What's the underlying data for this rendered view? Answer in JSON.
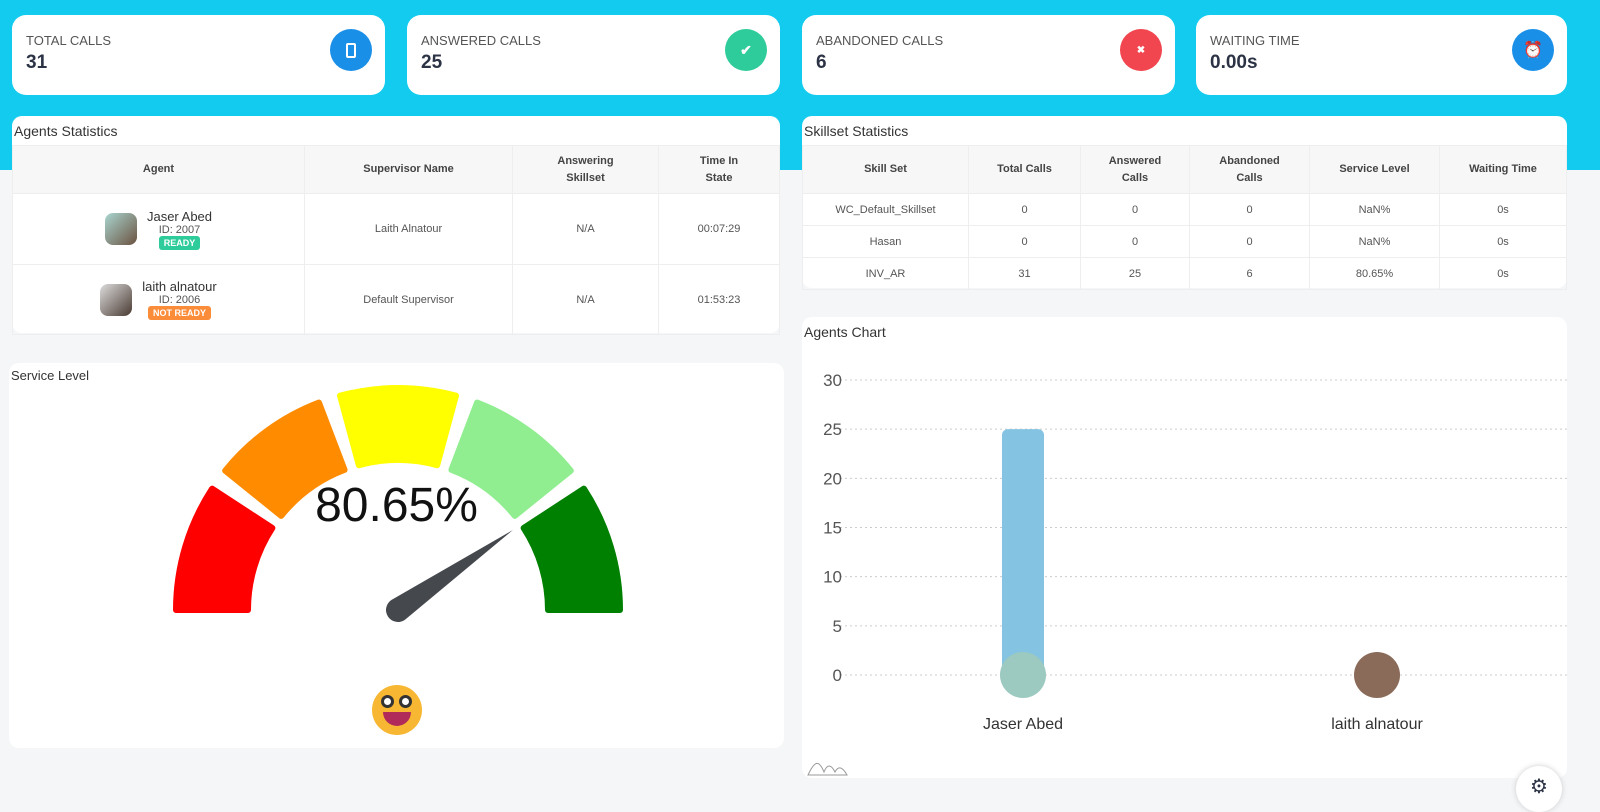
{
  "kpis": [
    {
      "label": "TOTAL CALLS",
      "value": "31",
      "icon": "mobile-phone-icon",
      "glyph": "▯",
      "color": "#1a8fe8"
    },
    {
      "label": "ANSWERED CALLS",
      "value": "25",
      "icon": "check-icon",
      "glyph": "✔",
      "color": "#2ecc9a"
    },
    {
      "label": "ABANDONED CALLS",
      "value": "6",
      "icon": "close-icon",
      "glyph": "✖",
      "color": "#f1454f"
    },
    {
      "label": "WAITING TIME",
      "value": "0.00s",
      "icon": "alarm-clock-icon",
      "glyph": "⏰",
      "color": "#1a8fe8"
    }
  ],
  "agents_stats": {
    "title": "Agents Statistics",
    "headers": [
      "Agent",
      "Supervisor Name",
      "Answering Skillset",
      "Time In State"
    ],
    "rows": [
      {
        "name": "Jaser Abed",
        "id": "ID: 2007",
        "status": "READY",
        "status_color": "#2ecc9a",
        "supervisor": "Laith Alnatour",
        "skillset": "N/A",
        "time": "00:07:29"
      },
      {
        "name": "laith alnatour",
        "id": "ID: 2006",
        "status": "NOT READY",
        "status_color": "#fb8c3a",
        "supervisor": "Default Supervisor",
        "skillset": "N/A",
        "time": "01:53:23"
      }
    ]
  },
  "skillset_stats": {
    "title": "Skillset Statistics",
    "headers": [
      "Skill Set",
      "Total Calls",
      "Answered Calls",
      "Abandoned Calls",
      "Service Level",
      "Waiting Time"
    ],
    "rows": [
      [
        "WC_Default_Skillset",
        "0",
        "0",
        "0",
        "NaN%",
        "0s"
      ],
      [
        "Hasan",
        "0",
        "0",
        "0",
        "NaN%",
        "0s"
      ],
      [
        "INV_AR",
        "31",
        "25",
        "6",
        "80.65%",
        "0s"
      ]
    ]
  },
  "service_level": {
    "title": "Service Level",
    "value_label": "80.65%",
    "value": 80.65,
    "colors": [
      "#ff0000",
      "#ff8c00",
      "#ffff00",
      "#90ee90",
      "#008000"
    ]
  },
  "chart_data": {
    "type": "bar",
    "title": "Agents Chart",
    "categories": [
      "Jaser Abed",
      "laith alnatour"
    ],
    "values": [
      25,
      0
    ],
    "ylim": [
      0,
      30
    ],
    "yticks": [
      "0",
      "5",
      "10",
      "15",
      "20",
      "25",
      "30"
    ],
    "bar_color": "#84c4e2",
    "grid": true
  }
}
